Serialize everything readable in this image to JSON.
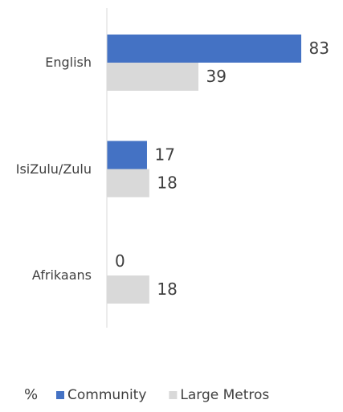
{
  "chart_data": {
    "type": "bar",
    "orientation": "horizontal",
    "categories": [
      "English",
      "IsiZulu/Zulu",
      "Afrikaans"
    ],
    "series": [
      {
        "name": "Community",
        "color": "#4472c4",
        "values": [
          83,
          17,
          0
        ]
      },
      {
        "name": "Large Metros",
        "color": "#d9d9d9",
        "values": [
          39,
          18,
          18
        ]
      }
    ],
    "legend_title": "%",
    "legend": "bottom"
  }
}
